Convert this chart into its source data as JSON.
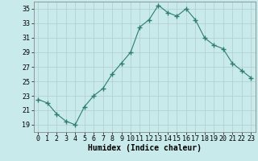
{
  "x": [
    0,
    1,
    2,
    3,
    4,
    5,
    6,
    7,
    8,
    9,
    10,
    11,
    12,
    13,
    14,
    15,
    16,
    17,
    18,
    19,
    20,
    21,
    22,
    23
  ],
  "y": [
    22.5,
    22.0,
    20.5,
    19.5,
    19.0,
    21.5,
    23.0,
    24.0,
    26.0,
    27.5,
    29.0,
    32.5,
    33.5,
    35.5,
    34.5,
    34.0,
    35.0,
    33.5,
    31.0,
    30.0,
    29.5,
    27.5,
    26.5,
    25.5
  ],
  "xlabel": "Humidex (Indice chaleur)",
  "ylim": [
    18,
    36
  ],
  "xlim": [
    -0.5,
    23.5
  ],
  "yticks": [
    19,
    21,
    23,
    25,
    27,
    29,
    31,
    33,
    35
  ],
  "xticks": [
    0,
    1,
    2,
    3,
    4,
    5,
    6,
    7,
    8,
    9,
    10,
    11,
    12,
    13,
    14,
    15,
    16,
    17,
    18,
    19,
    20,
    21,
    22,
    23
  ],
  "line_color": "#2e7d6e",
  "marker": "+",
  "marker_size": 4,
  "bg_color": "#c8eaea",
  "grid_color": "#b0cccc",
  "axis_fontsize": 7,
  "tick_fontsize": 6
}
